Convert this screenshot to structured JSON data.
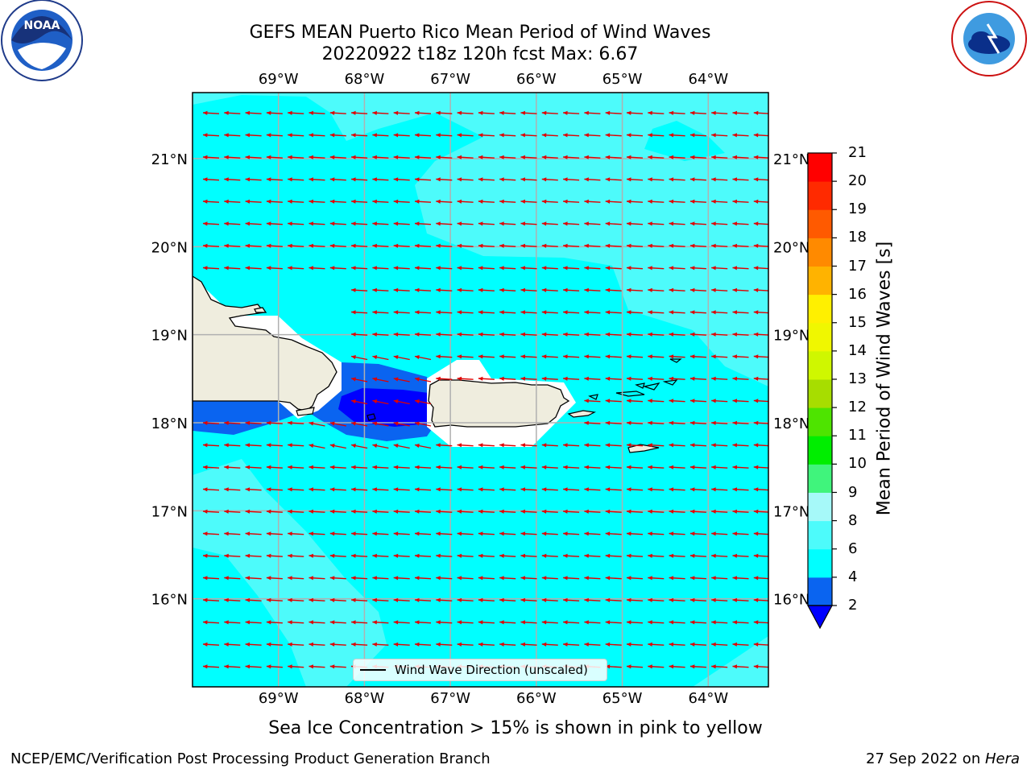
{
  "title": {
    "line1": "GEFS MEAN Puerto Rico Mean Period of Wind Waves",
    "line2": "20220922 t18z 120h fcst   Max: 6.67"
  },
  "logos": {
    "left": {
      "name": "NOAA",
      "ring_text": "NATIONAL OCEANIC AND ATMOSPHERIC ADMINISTRATION",
      "bottom_text": "U.S. DEPARTMENT OF COMMERCE"
    },
    "right": {
      "ring_text": "NATIONAL WEATHER SERVICE"
    }
  },
  "map": {
    "lon_range": [
      -70.0,
      -63.3
    ],
    "lat_range": [
      15.0,
      21.75
    ],
    "lon_ticks": [
      "69°W",
      "68°W",
      "67°W",
      "66°W",
      "65°W",
      "64°W"
    ],
    "lon_tick_values": [
      -69,
      -68,
      -67,
      -66,
      -65,
      -64
    ],
    "lat_ticks": [
      "21°N",
      "20°N",
      "19°N",
      "18°N",
      "17°N",
      "16°N"
    ],
    "lat_tick_values": [
      21,
      20,
      19,
      18,
      17,
      16
    ],
    "grid": true,
    "arrow_color": "#e00000",
    "arrow_direction": "westward",
    "land_color": "#efedde",
    "legend_label": "Wind Wave Direction (unscaled)"
  },
  "colorbar": {
    "label": "Mean Period of Wind Waves [s]",
    "ticks": [
      "21",
      "20",
      "19",
      "18",
      "17",
      "16",
      "15",
      "14",
      "13",
      "12",
      "11",
      "10",
      "9",
      "8",
      "6",
      "4",
      "2"
    ],
    "colors_bottom_to_top": [
      "#0a64f0",
      "#00ffff",
      "#4dfbfb",
      "#a6f9f9",
      "#40f47c",
      "#00ee00",
      "#4ee400",
      "#a7dd00",
      "#cff700",
      "#f0f700",
      "#fff000",
      "#ffb300",
      "#ff8a00",
      "#ff5a00",
      "#ff2a00",
      "#ff0000"
    ],
    "extend_color": "#0000ff"
  },
  "notes": {
    "sea_ice": "Sea Ice Concentration > 15% is shown in pink to yellow"
  },
  "footer": {
    "left": "NCEP/EMC/Verification Post Processing Product Generation Branch",
    "date": "27 Sep 2022 on ",
    "host": "Hera"
  }
}
